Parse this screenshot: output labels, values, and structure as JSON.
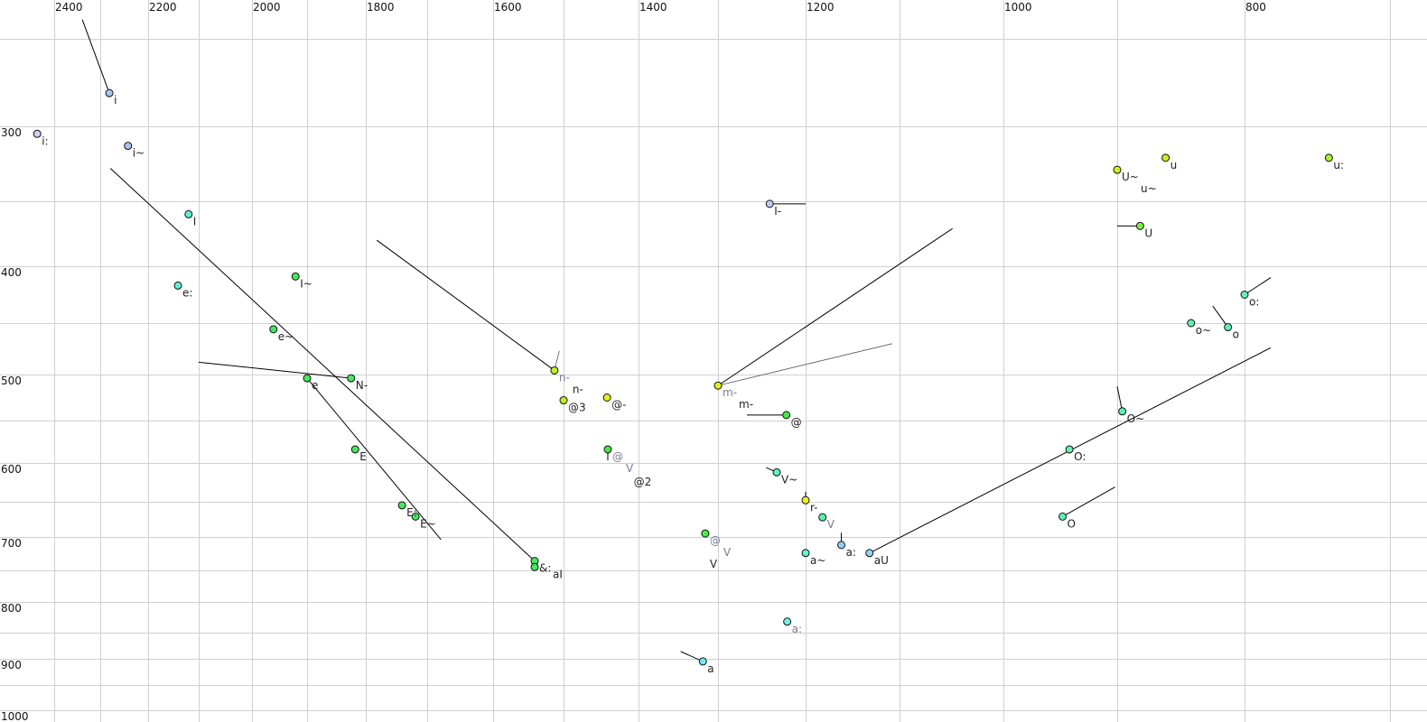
{
  "chart_data": {
    "type": "scatter",
    "title": "",
    "xlabel": "",
    "ylabel": "",
    "x_axis": {
      "reversed": true,
      "position": "top",
      "tick_labels": [
        "2400",
        "2200",
        "2000",
        "1800",
        "1600",
        "1400",
        "1200",
        "1000",
        "800"
      ],
      "grid_values": [
        2400,
        2300,
        2200,
        2100,
        2000,
        1900,
        1800,
        1700,
        1600,
        1500,
        1400,
        1300,
        1200,
        1100,
        1000,
        900,
        800,
        700
      ]
    },
    "y_axis": {
      "reversed": true,
      "position": "left",
      "tick_labels": [
        "300",
        "400",
        "500",
        "600",
        "700",
        "800",
        "900",
        "1000"
      ],
      "grid_values": [
        250,
        300,
        350,
        400,
        450,
        500,
        550,
        600,
        650,
        700,
        750,
        800,
        850,
        900,
        950,
        1000
      ]
    },
    "grid": true,
    "colors": {
      "grid": "#d0d0d0",
      "trajectory": "#000000",
      "reference_label": "#7a7a98",
      "label": "#222222"
    },
    "points": [
      {
        "f2": 2440,
        "f1": 305,
        "color": "#d4ccf4",
        "labels": [
          {
            "text": "i:"
          }
        ]
      },
      {
        "f2": 2281,
        "f1": 281,
        "color": "#a8c4f4",
        "labels": [
          {
            "text": "i"
          }
        ],
        "traj": [
          2339,
          239
        ]
      },
      {
        "f2": 2242,
        "f1": 313,
        "color": "#a8c4f4",
        "labels": [
          {
            "text": "i~"
          }
        ]
      },
      {
        "f2": 2120,
        "f1": 360,
        "color": "#60f0d4",
        "labels": [
          {
            "text": "I"
          }
        ]
      },
      {
        "f2": 2141,
        "f1": 417,
        "color": "#60f0d4",
        "labels": [
          {
            "text": "e:"
          }
        ]
      },
      {
        "f2": 1921,
        "f1": 409,
        "color": "#44e860",
        "labels": [
          {
            "text": "I~"
          }
        ]
      },
      {
        "f2": 1961,
        "f1": 456,
        "color": "#44e860",
        "labels": [
          {
            "text": "e~"
          }
        ]
      },
      {
        "f2": 1900,
        "f1": 504,
        "color": "#44e860",
        "labels": [
          {
            "text": "e"
          }
        ],
        "traj": [
          1679,
          704
        ]
      },
      {
        "f2": 1825,
        "f1": 504,
        "color": "#44e860",
        "labels": [
          {
            "text": "N-"
          }
        ],
        "traj": [
          2100,
          488
        ]
      },
      {
        "f2": 1818,
        "f1": 584,
        "color": "#44e860",
        "labels": [
          {
            "text": "E"
          }
        ]
      },
      {
        "f2": 1741,
        "f1": 655,
        "color": "#44e860",
        "labels": [
          {
            "text": "E:"
          }
        ]
      },
      {
        "f2": 1719,
        "f1": 671,
        "color": "#44e860",
        "labels": [
          {
            "text": "E~"
          }
        ]
      },
      {
        "f2": 1541,
        "f1": 736,
        "color": "#44e860",
        "labels": [
          {
            "text": "&:"
          }
        ],
        "traj": [
          2279,
          328
        ]
      },
      {
        "f2": 1541,
        "f1": 745,
        "color": "#44e860",
        "labels": [
          {
            "text": "aI"
          }
        ]
      },
      {
        "f2": 1513,
        "f1": 496,
        "color": "#c4f020",
        "labels": [
          {
            "text": "n-",
            "ref": true
          },
          {
            "text": "n-"
          }
        ],
        "traj": [
          1782,
          380
        ],
        "ref_traj": [
          1506,
          477
        ]
      },
      {
        "f2": 1500,
        "f1": 528,
        "color": "#c4f020",
        "labels": [
          {
            "text": "@3"
          }
        ]
      },
      {
        "f2": 1442,
        "f1": 525,
        "color": "#e0f020",
        "labels": [
          {
            "text": "@-"
          }
        ]
      },
      {
        "f2": 1441,
        "f1": 584,
        "color": "#44e844",
        "labels": [
          {
            "text": "@",
            "ref": true
          },
          {
            "text": "V",
            "ref": true
          },
          {
            "text": "@2"
          }
        ],
        "traj": [
          1441,
          597
        ]
      },
      {
        "f2": 1300,
        "f1": 512,
        "color": "#e0f020",
        "labels": [
          {
            "text": "m-",
            "ref": true
          },
          {
            "text": "m-"
          }
        ],
        "traj": [
          1049,
          371
        ],
        "ref_traj": [
          1108,
          470
        ]
      },
      {
        "f2": 1222,
        "f1": 544,
        "color": "#44e844",
        "labels": [
          {
            "text": "@"
          }
        ],
        "traj": [
          1267,
          544
        ]
      },
      {
        "f2": 1233,
        "f1": 612,
        "color": "#60f0c4",
        "labels": [
          {
            "text": "V~"
          }
        ],
        "traj": [
          1245,
          606
        ]
      },
      {
        "f2": 1200,
        "f1": 648,
        "color": "#f4f020",
        "labels": [
          {
            "text": "r-"
          }
        ],
        "traj": [
          1200,
          637
        ]
      },
      {
        "f2": 1182,
        "f1": 672,
        "color": "#60f0a4",
        "labels": [
          {
            "text": "V",
            "ref": true
          }
        ]
      },
      {
        "f2": 1316,
        "f1": 695,
        "color": "#44f044",
        "labels": [
          {
            "text": "@",
            "ref": true
          },
          {
            "text": "V",
            "ref": true
          },
          {
            "text": "V"
          }
        ]
      },
      {
        "f2": 1162,
        "f1": 712,
        "color": "#90d0f4",
        "labels": [
          {
            "text": "a:"
          }
        ],
        "traj": [
          1162,
          694
        ]
      },
      {
        "f2": 1200,
        "f1": 724,
        "color": "#60f0d4",
        "labels": [
          {
            "text": "a~"
          }
        ]
      },
      {
        "f2": 1132,
        "f1": 724,
        "color": "#90d4f4",
        "labels": [
          {
            "text": "aU"
          }
        ],
        "traj": [
          782,
          474
        ]
      },
      {
        "f2": 1221,
        "f1": 832,
        "color": "#70f0e4",
        "labels": [
          {
            "text": "a:",
            "ref": true
          }
        ]
      },
      {
        "f2": 1319,
        "f1": 905,
        "color": "#70e8f4",
        "labels": [
          {
            "text": "a"
          }
        ],
        "traj": [
          1347,
          886
        ]
      },
      {
        "f2": 1241,
        "f1": 352,
        "color": "#c8c8f4",
        "labels": [
          {
            "text": "I-"
          }
        ],
        "traj": [
          1200,
          352
        ]
      },
      {
        "f2": 900,
        "f1": 329,
        "color": "#d0f020",
        "labels": [
          {
            "text": "U~"
          },
          {
            "text": "u~"
          }
        ]
      },
      {
        "f2": 862,
        "f1": 321,
        "color": "#c8f020",
        "labels": [
          {
            "text": "u"
          }
        ]
      },
      {
        "f2": 742,
        "f1": 321,
        "color": "#b0f030",
        "labels": [
          {
            "text": "u:"
          }
        ]
      },
      {
        "f2": 882,
        "f1": 369,
        "color": "#80f040",
        "labels": [
          {
            "text": "U"
          }
        ],
        "traj": [
          900,
          369
        ]
      },
      {
        "f2": 800,
        "f1": 425,
        "color": "#60f0b0",
        "labels": [
          {
            "text": "o:"
          }
        ],
        "traj": [
          782,
          410
        ]
      },
      {
        "f2": 842,
        "f1": 450,
        "color": "#60f0b0",
        "labels": [
          {
            "text": "o~"
          }
        ]
      },
      {
        "f2": 813,
        "f1": 454,
        "color": "#60f0b0",
        "labels": [
          {
            "text": "o"
          }
        ],
        "traj": [
          825,
          435
        ]
      },
      {
        "f2": 896,
        "f1": 540,
        "color": "#60f0b0",
        "labels": [
          {
            "text": "O~"
          }
        ],
        "traj": [
          900,
          513
        ]
      },
      {
        "f2": 942,
        "f1": 584,
        "color": "#60f0b0",
        "labels": [
          {
            "text": "O:"
          }
        ]
      },
      {
        "f2": 948,
        "f1": 671,
        "color": "#60f0b0",
        "labels": [
          {
            "text": "O"
          }
        ],
        "traj": [
          902,
          631
        ]
      }
    ]
  }
}
